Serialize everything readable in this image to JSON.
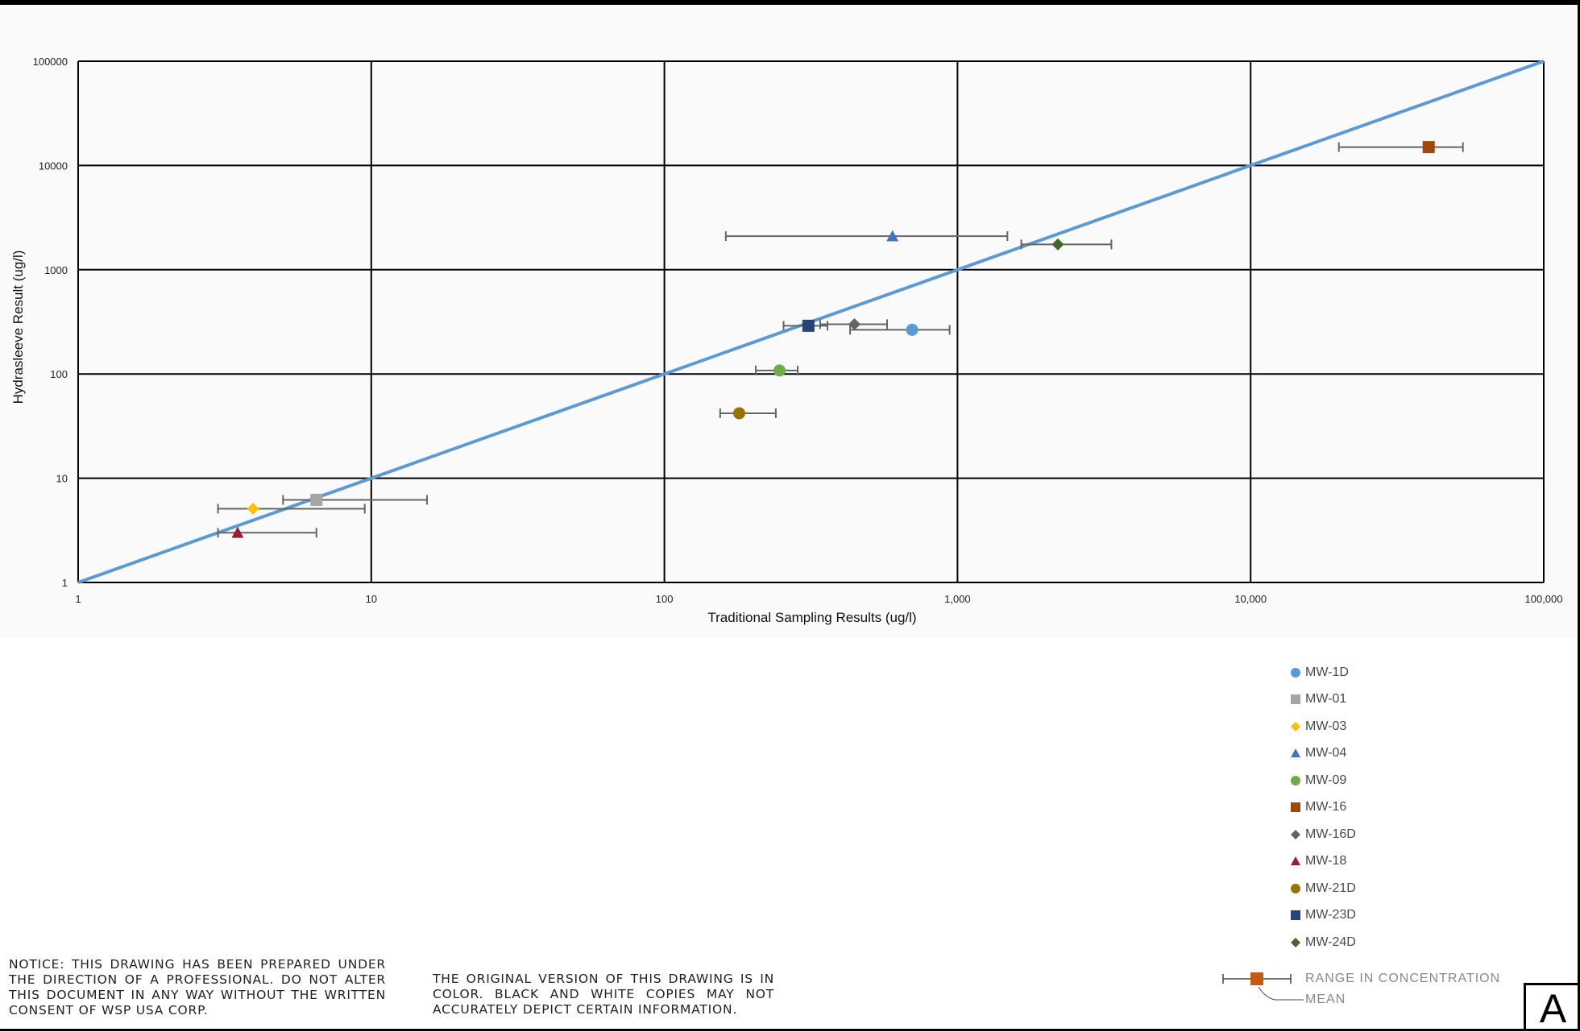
{
  "chart_data": {
    "type": "scatter",
    "xlabel": "Traditional Sampling Results (ug/l)",
    "ylabel": "Hydrasleeve Result (ug/l)",
    "x_scale": "log",
    "y_scale": "log",
    "xlim": [
      1,
      100000
    ],
    "ylim": [
      1,
      100000
    ],
    "x_ticks": [
      {
        "value": 1,
        "label": "1"
      },
      {
        "value": 10,
        "label": "10"
      },
      {
        "value": 100,
        "label": "100"
      },
      {
        "value": 1000,
        "label": "1,000"
      },
      {
        "value": 10000,
        "label": "10,000"
      },
      {
        "value": 100000,
        "label": "100,000"
      }
    ],
    "y_ticks": [
      {
        "value": 1,
        "label": "1"
      },
      {
        "value": 10,
        "label": "10"
      },
      {
        "value": 100,
        "label": "100"
      },
      {
        "value": 1000,
        "label": "1000"
      },
      {
        "value": 10000,
        "label": "10000"
      },
      {
        "value": 100000,
        "label": "100000"
      }
    ],
    "grid": true,
    "reference_line": {
      "from": [
        1,
        1
      ],
      "to": [
        100000,
        100000
      ],
      "color": "#5b9bd5"
    },
    "error_bar_color": "#666666",
    "series": [
      {
        "name": "MW-1D",
        "marker": "circle",
        "color": "#5b9bd5",
        "x": 700,
        "y": 265,
        "x_range": [
          430,
          940
        ]
      },
      {
        "name": "MW-01",
        "marker": "square",
        "color": "#a5a5a5",
        "x": 6.5,
        "y": 6.2,
        "x_range": [
          5,
          15.5
        ]
      },
      {
        "name": "MW-03",
        "marker": "diamond",
        "color": "#ffc000",
        "x": 3.95,
        "y": 5.1,
        "x_range": [
          3,
          9.5
        ]
      },
      {
        "name": "MW-04",
        "marker": "triangle",
        "color": "#4472c4",
        "x": 600,
        "y": 2100,
        "x_range": [
          162,
          1480
        ]
      },
      {
        "name": "MW-09",
        "marker": "circle",
        "color": "#70ad47",
        "x": 247,
        "y": 108,
        "x_range": [
          205,
          285
        ]
      },
      {
        "name": "MW-16",
        "marker": "square",
        "color": "#9e480e",
        "x": 40500,
        "y": 15000,
        "x_range": [
          20000,
          53000
        ]
      },
      {
        "name": "MW-16D",
        "marker": "diamond",
        "color": "#636363",
        "x": 445,
        "y": 300,
        "x_range": [
          340,
          575
        ]
      },
      {
        "name": "MW-18",
        "marker": "triangle",
        "color": "#9e1b32",
        "x": 3.5,
        "y": 3.0,
        "x_range": [
          3,
          6.5
        ]
      },
      {
        "name": "MW-21D",
        "marker": "circle",
        "color": "#997300",
        "x": 180,
        "y": 42,
        "x_range": [
          155,
          240
        ]
      },
      {
        "name": "MW-23D",
        "marker": "square",
        "color": "#264478",
        "x": 310,
        "y": 290,
        "x_range": [
          255,
          360
        ]
      },
      {
        "name": "MW-24D",
        "marker": "diamond",
        "color": "#43682b",
        "x": 2200,
        "y": 1750,
        "x_range": [
          1650,
          3350
        ]
      }
    ]
  },
  "key": {
    "range_label": "RANGE IN CONCENTRATION",
    "mean_label": "MEAN",
    "marker_color": "#c55a11"
  },
  "notices": {
    "left": "NOTICE: THIS DRAWING HAS BEEN PREPARED UNDER THE DIRECTION OF A PROFESSIONAL. DO NOT ALTER THIS DOCUMENT IN ANY WAY WITHOUT THE WRITTEN CONSENT OF WSP USA CORP.",
    "right": "THE ORIGINAL VERSION OF THIS DRAWING IS IN COLOR. BLACK AND WHITE COPIES MAY NOT ACCURATELY DEPICT CERTAIN INFORMATION."
  },
  "sheet_letter": "A"
}
